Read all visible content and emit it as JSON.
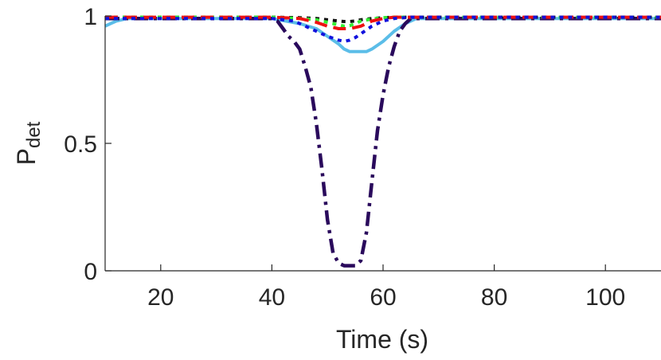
{
  "chart_data": {
    "type": "line",
    "title": "",
    "xlabel": "Time (s)",
    "ylabel_main": "P",
    "ylabel_sub": "det",
    "xlim": [
      10,
      110
    ],
    "ylim": [
      0,
      1
    ],
    "x_ticks": [
      20,
      40,
      60,
      80,
      100
    ],
    "y_ticks": [
      0,
      0.5,
      1
    ],
    "x_tick_labels": [
      "20",
      "40",
      "60",
      "80",
      "100"
    ],
    "y_tick_labels": [
      "0",
      "0.5",
      "1"
    ],
    "grid": false,
    "legend": "none",
    "series": [
      {
        "color": "#5bbde8",
        "style": "solid",
        "x": [
          10,
          11,
          12,
          14,
          16,
          20,
          30,
          40,
          45,
          48,
          50,
          52,
          53,
          54,
          55,
          56,
          57,
          58,
          60,
          62,
          64,
          66,
          68,
          70,
          80,
          90,
          100,
          110
        ],
        "y": [
          0.96,
          0.97,
          0.98,
          0.99,
          0.99,
          0.99,
          0.99,
          0.99,
          0.97,
          0.95,
          0.92,
          0.89,
          0.87,
          0.86,
          0.86,
          0.86,
          0.86,
          0.87,
          0.9,
          0.94,
          0.97,
          0.99,
          0.99,
          0.99,
          0.99,
          0.99,
          0.99,
          0.99
        ]
      },
      {
        "color": "#2a0a5c",
        "style": "dashdot",
        "x": [
          10,
          15,
          20,
          25,
          30,
          35,
          40,
          41,
          42,
          43,
          44,
          45,
          46,
          47,
          48,
          49,
          50,
          51,
          52,
          53,
          54,
          55,
          56,
          57,
          58,
          59,
          60,
          61,
          62,
          63,
          64,
          65,
          70,
          80,
          90,
          100,
          110
        ],
        "y": [
          0.99,
          0.99,
          0.99,
          0.99,
          0.99,
          0.99,
          0.99,
          0.98,
          0.95,
          0.92,
          0.9,
          0.87,
          0.8,
          0.72,
          0.58,
          0.4,
          0.2,
          0.07,
          0.03,
          0.02,
          0.02,
          0.02,
          0.04,
          0.15,
          0.35,
          0.55,
          0.69,
          0.8,
          0.88,
          0.94,
          0.97,
          0.99,
          0.99,
          0.99,
          0.99,
          0.99,
          0.99
        ]
      },
      {
        "color": "#111111",
        "style": "dotted",
        "x": [
          10,
          20,
          30,
          40,
          45,
          48,
          50,
          52,
          53,
          54,
          55,
          56,
          58,
          60,
          62,
          65,
          70,
          80,
          90,
          100,
          110
        ],
        "y": [
          0.995,
          0.995,
          0.995,
          0.995,
          0.993,
          0.99,
          0.985,
          0.98,
          0.978,
          0.978,
          0.98,
          0.985,
          0.99,
          0.993,
          0.995,
          0.995,
          0.995,
          0.995,
          0.995,
          0.995,
          0.995
        ]
      },
      {
        "color": "#33ee33",
        "style": "dotted",
        "x": [
          10,
          20,
          30,
          40,
          45,
          48,
          50,
          52,
          53,
          54,
          55,
          56,
          58,
          60,
          62,
          65,
          70,
          80,
          90,
          100,
          110
        ],
        "y": [
          0.995,
          0.995,
          0.995,
          0.995,
          0.99,
          0.985,
          0.975,
          0.965,
          0.96,
          0.962,
          0.97,
          0.98,
          0.988,
          0.993,
          0.995,
          0.995,
          0.995,
          0.995,
          0.995,
          0.995,
          0.995
        ]
      },
      {
        "color": "#ee1111",
        "style": "dashed",
        "x": [
          10,
          20,
          30,
          40,
          45,
          48,
          50,
          52,
          53,
          54,
          55,
          56,
          57,
          58,
          60,
          62,
          65,
          70,
          80,
          90,
          100,
          110
        ],
        "y": [
          0.995,
          0.995,
          0.995,
          0.995,
          0.99,
          0.975,
          0.96,
          0.95,
          0.95,
          0.95,
          0.955,
          0.96,
          0.97,
          0.98,
          0.99,
          0.995,
          0.995,
          0.995,
          0.995,
          0.995,
          0.995,
          0.995
        ]
      },
      {
        "color": "#1111dd",
        "style": "dotted",
        "x": [
          10,
          20,
          30,
          40,
          44,
          46,
          48,
          50,
          52,
          53,
          54,
          55,
          56,
          57,
          58,
          59,
          60,
          62,
          65,
          70,
          80,
          90,
          100,
          110
        ],
        "y": [
          0.99,
          0.99,
          0.99,
          0.99,
          0.98,
          0.96,
          0.94,
          0.92,
          0.905,
          0.9,
          0.905,
          0.915,
          0.93,
          0.945,
          0.96,
          0.97,
          0.98,
          0.99,
          0.995,
          0.995,
          0.995,
          0.995,
          0.995,
          0.995
        ]
      }
    ]
  }
}
